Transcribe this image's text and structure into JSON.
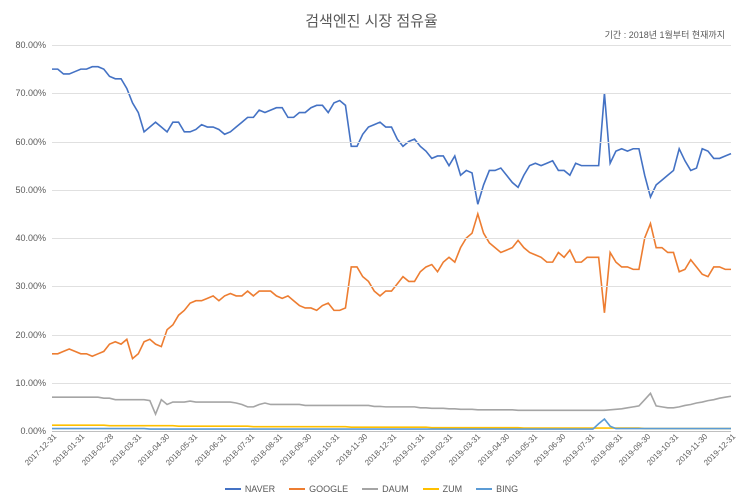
{
  "chart": {
    "type": "line",
    "title": "검색엔진 시장 점유율",
    "subtitle": "기간 : 2018년 1월부터 현재까지",
    "title_fontsize": 15,
    "subtitle_fontsize": 9,
    "title_color": "#595959",
    "background_color": "#ffffff",
    "grid_color": "#e0e0e0",
    "axis_color": "#bfbfbf",
    "label_color": "#595959",
    "label_fontsize": 9,
    "ylim": [
      0,
      80
    ],
    "ytick_step": 10,
    "y_tick_labels": [
      "0.00%",
      "10.00%",
      "20.00%",
      "30.00%",
      "40.00%",
      "50.00%",
      "60.00%",
      "70.00%",
      "80.00%"
    ],
    "x_tick_labels": [
      "2017-12-31",
      "2018-01-31",
      "2018-02-28",
      "2018-03-31",
      "2018-04-30",
      "2018-05-31",
      "2018-06-31",
      "2018-07-31",
      "2018-08-31",
      "2018-09-30",
      "2018-10-31",
      "2018-11-30",
      "2018-12-31",
      "2019-01-31",
      "2019-02-31",
      "2019-03-31",
      "2019-04-30",
      "2019-05-31",
      "2019-06-30",
      "2019-07-31",
      "2019-08-31",
      "2019-09-30",
      "2019-10-31",
      "2019-11-30",
      "2019-12-31"
    ],
    "series": [
      {
        "name": "NAVER",
        "color": "#4472c4",
        "line_width": 1.6,
        "values": [
          75,
          75,
          74,
          74,
          74.5,
          75,
          75,
          75.5,
          75.5,
          75,
          73.5,
          73,
          73,
          71,
          68,
          66,
          62,
          63,
          64,
          63,
          62,
          64,
          64,
          62,
          62,
          62.5,
          63.5,
          63,
          63,
          62.5,
          61.5,
          62,
          63,
          64,
          65,
          65,
          66.5,
          66,
          66.5,
          67,
          67,
          65,
          65,
          66,
          66,
          67,
          67.5,
          67.5,
          66,
          68,
          68.5,
          67.5,
          59,
          59,
          61.5,
          63,
          63.5,
          64,
          63,
          63,
          60.5,
          59,
          60,
          60.5,
          59,
          58,
          56.5,
          57,
          57,
          55,
          57,
          53,
          54,
          53.5,
          47,
          51,
          54,
          54,
          54.5,
          53,
          51.5,
          50.5,
          53,
          55,
          55.5,
          55,
          55.5,
          56,
          54,
          54,
          53,
          55.5,
          55,
          55,
          55,
          55,
          70,
          55.5,
          58,
          58.5,
          58,
          58.5,
          58.5,
          53,
          48.5,
          51,
          52,
          53,
          54,
          58.5,
          56,
          54,
          54.5,
          58.5,
          58,
          56.5,
          56.5,
          57,
          57.5
        ]
      },
      {
        "name": "GOOGLE",
        "color": "#ed7d31",
        "line_width": 1.6,
        "values": [
          16,
          16,
          16.5,
          17,
          16.5,
          16,
          16,
          15.5,
          16,
          16.5,
          18,
          18.5,
          18,
          19,
          15,
          16,
          18.5,
          19,
          18,
          17.5,
          21,
          22,
          24,
          25,
          26.5,
          27,
          27,
          27.5,
          28,
          27,
          28,
          28.5,
          28,
          28,
          29,
          28,
          29,
          29,
          29,
          28,
          27.5,
          28,
          27,
          26,
          25.5,
          25.5,
          25,
          26,
          26.5,
          25,
          25,
          25.5,
          34,
          34,
          32,
          31,
          29,
          28,
          29,
          29,
          30.5,
          32,
          31,
          31,
          33,
          34,
          34.5,
          33,
          35,
          36,
          35,
          38,
          40,
          41,
          45,
          41,
          39,
          38,
          37,
          37.5,
          38,
          39.5,
          38,
          37,
          36.5,
          36,
          35,
          35,
          37,
          36,
          37.5,
          35,
          35,
          36,
          36,
          36,
          24.5,
          37,
          35,
          34,
          34,
          33.5,
          33.5,
          40,
          43,
          38,
          38,
          37,
          37,
          33,
          33.5,
          35.5,
          34,
          32.5,
          32,
          34,
          34,
          33.5,
          33.5
        ]
      },
      {
        "name": "DAUM",
        "color": "#a5a5a5",
        "line_width": 1.6,
        "values": [
          7,
          7,
          7,
          7,
          7,
          7,
          7,
          7,
          7,
          6.8,
          6.8,
          6.5,
          6.5,
          6.5,
          6.5,
          6.5,
          6.5,
          6.3,
          3.5,
          6.5,
          5.5,
          6,
          6,
          6,
          6.2,
          6,
          6,
          6,
          6,
          6,
          6,
          6,
          5.8,
          5.5,
          5,
          5,
          5.5,
          5.8,
          5.5,
          5.5,
          5.5,
          5.5,
          5.5,
          5.5,
          5.3,
          5.3,
          5.3,
          5.3,
          5.3,
          5.3,
          5.3,
          5.3,
          5.3,
          5.3,
          5.3,
          5.3,
          5.1,
          5.1,
          5,
          5,
          5,
          5,
          5,
          5,
          4.8,
          4.8,
          4.7,
          4.7,
          4.7,
          4.6,
          4.6,
          4.5,
          4.5,
          4.5,
          4.4,
          4.4,
          4.4,
          4.4,
          4.4,
          4.4,
          4.4,
          4.3,
          4.3,
          4.3,
          4.3,
          4.3,
          4.3,
          4.3,
          4.3,
          4.3,
          4.3,
          4.3,
          4.3,
          4.3,
          4.3,
          4.3,
          4.3,
          4.4,
          4.5,
          4.6,
          4.8,
          5,
          5.2,
          6.5,
          7.8,
          5.2,
          5,
          4.8,
          4.8,
          5,
          5.3,
          5.5,
          5.8,
          6,
          6.3,
          6.5,
          6.8,
          7,
          7.2
        ]
      },
      {
        "name": "ZUM",
        "color": "#ffc000",
        "line_width": 1.6,
        "values": [
          1.2,
          1.2,
          1.2,
          1.2,
          1.2,
          1.2,
          1.2,
          1.2,
          1.2,
          1.2,
          1.1,
          1.1,
          1.1,
          1.1,
          1.1,
          1.1,
          1.1,
          1.1,
          1.1,
          1.1,
          1.1,
          1.1,
          1.0,
          1.0,
          1.0,
          1.0,
          1.0,
          1.0,
          1.0,
          1.0,
          1.0,
          1.0,
          1.0,
          1.0,
          1.0,
          0.9,
          0.9,
          0.9,
          0.9,
          0.9,
          0.9,
          0.9,
          0.9,
          0.9,
          0.9,
          0.9,
          0.9,
          0.9,
          0.9,
          0.9,
          0.9,
          0.9,
          0.8,
          0.8,
          0.8,
          0.8,
          0.8,
          0.8,
          0.8,
          0.8,
          0.8,
          0.8,
          0.8,
          0.8,
          0.8,
          0.8,
          0.7,
          0.7,
          0.7,
          0.7,
          0.7,
          0.7,
          0.7,
          0.7,
          0.7,
          0.7,
          0.7,
          0.7,
          0.7,
          0.7,
          0.7,
          0.7,
          0.6,
          0.6,
          0.6,
          0.6,
          0.6,
          0.6,
          0.6,
          0.6,
          0.6,
          0.6,
          0.6,
          0.6,
          0.6,
          0.6,
          0.6,
          0.6,
          0.6,
          0.6,
          0.6,
          0.6,
          0.6,
          0.5,
          0.5,
          0.5,
          0.5,
          0.5,
          0.5,
          0.5,
          0.5,
          0.5,
          0.5,
          0.5,
          0.5,
          0.5,
          0.5,
          0.5,
          0.5
        ]
      },
      {
        "name": "BING",
        "color": "#5b9bd5",
        "line_width": 1.6,
        "values": [
          0.5,
          0.5,
          0.5,
          0.5,
          0.5,
          0.5,
          0.5,
          0.5,
          0.5,
          0.5,
          0.5,
          0.5,
          0.5,
          0.5,
          0.5,
          0.5,
          0.5,
          0.4,
          0.4,
          0.4,
          0.4,
          0.4,
          0.4,
          0.4,
          0.4,
          0.4,
          0.4,
          0.4,
          0.4,
          0.4,
          0.4,
          0.4,
          0.4,
          0.4,
          0.4,
          0.4,
          0.4,
          0.4,
          0.4,
          0.4,
          0.4,
          0.4,
          0.4,
          0.4,
          0.4,
          0.4,
          0.4,
          0.4,
          0.4,
          0.4,
          0.4,
          0.4,
          0.4,
          0.4,
          0.4,
          0.4,
          0.4,
          0.4,
          0.4,
          0.4,
          0.4,
          0.4,
          0.4,
          0.4,
          0.4,
          0.4,
          0.4,
          0.4,
          0.4,
          0.4,
          0.4,
          0.4,
          0.4,
          0.4,
          0.4,
          0.4,
          0.4,
          0.4,
          0.4,
          0.4,
          0.4,
          0.4,
          0.4,
          0.4,
          0.4,
          0.4,
          0.4,
          0.4,
          0.4,
          0.4,
          0.4,
          0.4,
          0.4,
          0.4,
          0.4,
          1.5,
          2.5,
          1.0,
          0.5,
          0.5,
          0.5,
          0.5,
          0.5,
          0.5,
          0.5,
          0.5,
          0.5,
          0.5,
          0.5,
          0.5,
          0.5,
          0.5,
          0.5,
          0.5,
          0.5,
          0.5,
          0.5,
          0.5,
          0.5
        ]
      }
    ],
    "legend": {
      "position": "bottom",
      "labels": [
        "NAVER",
        "GOOGLE",
        "DAUM",
        "ZUM",
        "BING"
      ]
    }
  }
}
